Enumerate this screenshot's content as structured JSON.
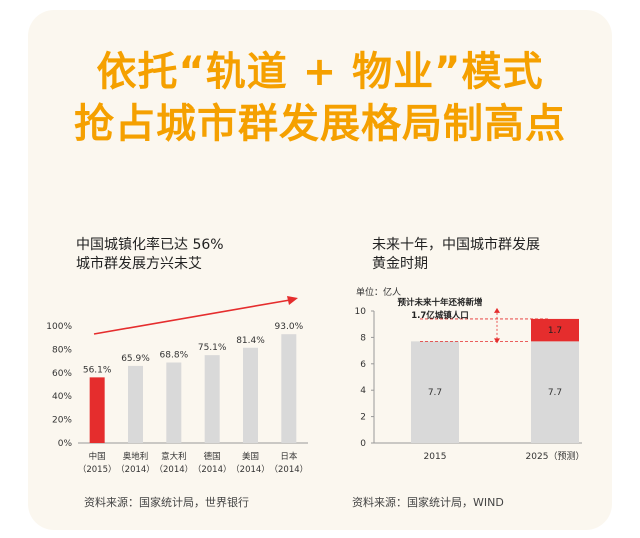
{
  "headline": {
    "line1": "依托“轨道 + 物业”模式",
    "line2": "抢占城市群发展格局制高点"
  },
  "left_panel": {
    "subtitle_line1": "中国城镇化率已达 56%",
    "subtitle_line2": "城市群发展方兴未艾",
    "source": "资料来源：国家统计局，世界银行"
  },
  "right_panel": {
    "subtitle_line1": "未来十年，中国城市群发展",
    "subtitle_line2": "黄金时期",
    "source": "资料来源：国家统计局，WIND"
  },
  "colors": {
    "headline": "#f5a000",
    "highlight_bar": "#e52d2d",
    "gray_bar": "#d9d9d9",
    "arrow": "#e52d2d"
  },
  "chart_data": [
    {
      "type": "bar",
      "categories": [
        [
          "中国",
          "（2015）"
        ],
        [
          "奥地利",
          "（2014）"
        ],
        [
          "意大利",
          "（2014）"
        ],
        [
          "德国",
          "（2014）"
        ],
        [
          "美国",
          "（2014）"
        ],
        [
          "日本",
          "（2014）"
        ]
      ],
      "values": [
        56.1,
        65.9,
        68.8,
        75.1,
        81.4,
        93.0
      ],
      "value_labels": [
        "56.1%",
        "65.9%",
        "68.8%",
        "75.1%",
        "81.4%",
        "93.0%"
      ],
      "highlight_index": 0,
      "ylim": [
        0,
        100
      ],
      "yticks": [
        "0%",
        "20%",
        "40%",
        "60%",
        "80%",
        "100%"
      ],
      "trend_arrow": true
    },
    {
      "type": "bar",
      "stacked": true,
      "unit_label": "单位：亿人",
      "categories": [
        "2015",
        "2025（预测）"
      ],
      "series": [
        {
          "values": [
            7.7,
            7.7
          ],
          "labels": [
            "7.7",
            "7.7"
          ]
        },
        {
          "values": [
            0,
            1.7
          ],
          "labels": [
            "",
            "1.7"
          ]
        }
      ],
      "ylim": [
        0,
        10
      ],
      "yticks": [
        "0",
        "2",
        "4",
        "6",
        "8",
        "10"
      ],
      "annotation_line1": "预计未来十年还将新增",
      "annotation_line2": "1.7亿城镇人口"
    }
  ]
}
